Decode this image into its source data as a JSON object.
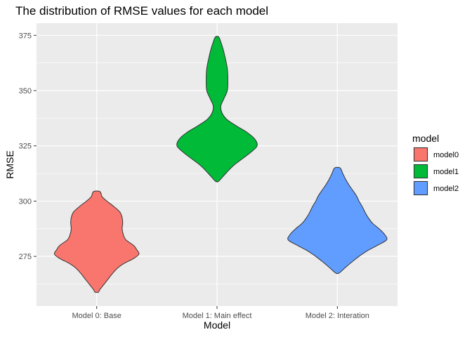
{
  "chart_data": {
    "type": "violin",
    "title": "The distribution of RMSE values for each model",
    "xlabel": "Model",
    "ylabel": "RMSE",
    "categories": [
      "Model 0: Base",
      "Model 1: Main effect",
      "Model 2: Interation"
    ],
    "ylim": [
      252.5,
      380.5
    ],
    "yticks": [
      275,
      300,
      325,
      350,
      375
    ],
    "grid": true,
    "legend": {
      "title": "model",
      "position": "right",
      "entries": [
        {
          "label": "model0",
          "color": "#F8766D"
        },
        {
          "label": "model1",
          "color": "#00BA38"
        },
        {
          "label": "model2",
          "color": "#619CFF"
        }
      ]
    },
    "series": [
      {
        "category": "Model 0: Base",
        "color": "#F8766D",
        "min": 258.8,
        "max": 304.3,
        "profile": [
          [
            304.3,
            0.06
          ],
          [
            302.0,
            0.1
          ],
          [
            300.0,
            0.19
          ],
          [
            297.5,
            0.32
          ],
          [
            295.0,
            0.43
          ],
          [
            292.5,
            0.47
          ],
          [
            290.0,
            0.48
          ],
          [
            287.5,
            0.47
          ],
          [
            285.0,
            0.49
          ],
          [
            282.5,
            0.54
          ],
          [
            280.0,
            0.68
          ],
          [
            278.0,
            0.74
          ],
          [
            276.0,
            0.78
          ],
          [
            274.0,
            0.68
          ],
          [
            272.0,
            0.52
          ],
          [
            270.0,
            0.4
          ],
          [
            267.5,
            0.3
          ],
          [
            265.0,
            0.22
          ],
          [
            262.5,
            0.14
          ],
          [
            260.0,
            0.06
          ],
          [
            258.8,
            0.03
          ]
        ]
      },
      {
        "category": "Model 1: Main effect",
        "color": "#00BA38",
        "min": 308.8,
        "max": 374.3,
        "profile": [
          [
            374.3,
            0.03
          ],
          [
            372.0,
            0.07
          ],
          [
            369.0,
            0.11
          ],
          [
            365.0,
            0.15
          ],
          [
            360.0,
            0.19
          ],
          [
            355.0,
            0.2
          ],
          [
            350.0,
            0.19
          ],
          [
            346.0,
            0.12
          ],
          [
            343.0,
            0.07
          ],
          [
            340.0,
            0.09
          ],
          [
            337.0,
            0.18
          ],
          [
            334.0,
            0.36
          ],
          [
            331.0,
            0.56
          ],
          [
            328.0,
            0.7
          ],
          [
            325.0,
            0.74
          ],
          [
            322.0,
            0.62
          ],
          [
            319.0,
            0.46
          ],
          [
            316.0,
            0.3
          ],
          [
            313.0,
            0.18
          ],
          [
            310.0,
            0.07
          ],
          [
            308.8,
            0.02
          ]
        ]
      },
      {
        "category": "Model 2: Interation",
        "color": "#619CFF",
        "min": 267.3,
        "max": 315.0,
        "profile": [
          [
            315.0,
            0.05
          ],
          [
            312.5,
            0.1
          ],
          [
            310.0,
            0.15
          ],
          [
            307.5,
            0.21
          ],
          [
            305.0,
            0.28
          ],
          [
            302.5,
            0.35
          ],
          [
            300.0,
            0.4
          ],
          [
            297.5,
            0.46
          ],
          [
            295.0,
            0.51
          ],
          [
            292.5,
            0.57
          ],
          [
            290.0,
            0.65
          ],
          [
            287.5,
            0.77
          ],
          [
            285.0,
            0.87
          ],
          [
            282.5,
            0.91
          ],
          [
            280.0,
            0.74
          ],
          [
            277.5,
            0.55
          ],
          [
            275.0,
            0.4
          ],
          [
            272.5,
            0.27
          ],
          [
            270.0,
            0.15
          ],
          [
            268.0,
            0.06
          ],
          [
            267.3,
            0.02
          ]
        ]
      }
    ]
  }
}
